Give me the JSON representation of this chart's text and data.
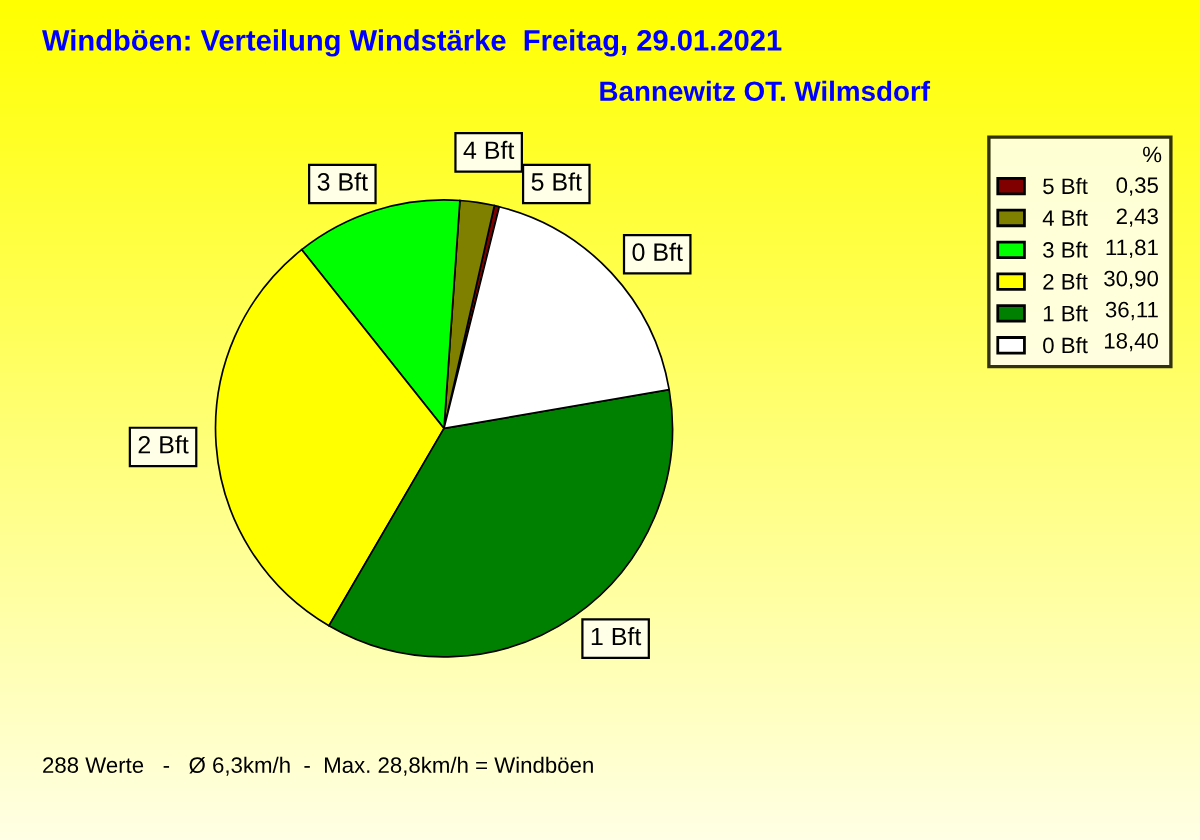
{
  "chart_data": {
    "type": "pie",
    "title": "Windböen: Verteilung Windstärke  Freitag, 29.01.2021",
    "subtitle": "Bannewitz OT. Wilmsdorf",
    "categories": [
      "5 Bft",
      "4 Bft",
      "3 Bft",
      "2 Bft",
      "1 Bft",
      "0 Bft"
    ],
    "values": [
      0.35,
      2.43,
      11.81,
      30.9,
      36.11,
      18.4
    ],
    "value_labels": [
      "0,35",
      "2,43",
      "11,81",
      "30,90",
      "36,11",
      "18,40"
    ],
    "colors": [
      "#800000",
      "#808000",
      "#00ff00",
      "#ffff00",
      "#008000",
      "#ffffff"
    ],
    "legend": "right",
    "legend_title": "%",
    "annotations": [
      "288 Werte   -   Ø 6,3km/h  -  Max. 28,8km/h = Windböen"
    ]
  }
}
